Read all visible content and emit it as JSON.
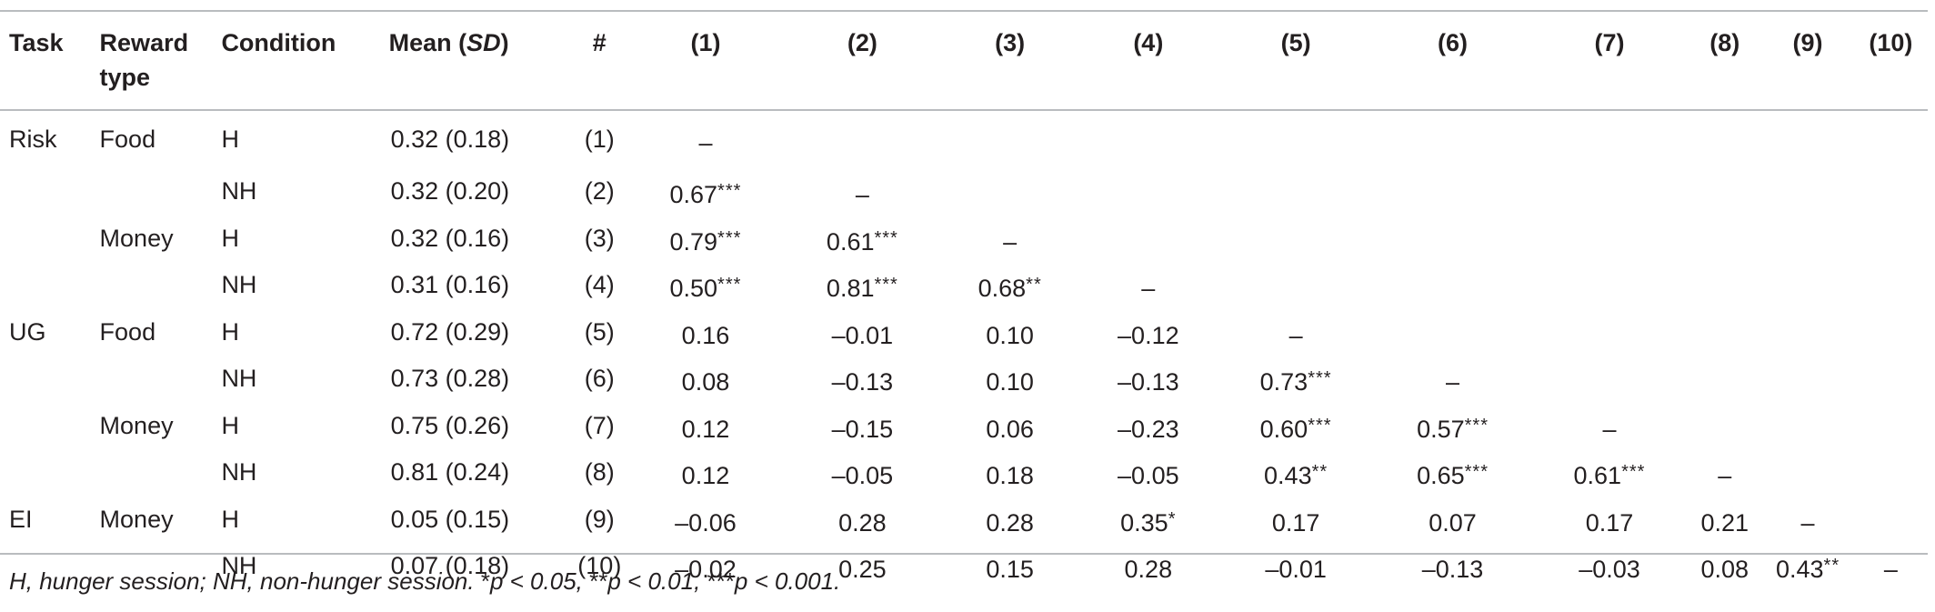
{
  "headers": {
    "task": "Task",
    "reward_type": [
      "Reward",
      "type"
    ],
    "condition": "Condition",
    "mean_prefix": "Mean (",
    "mean_sd": "SD",
    "mean_suffix": ")",
    "num": "#",
    "cols": [
      "(1)",
      "(2)",
      "(3)",
      "(4)",
      "(5)",
      "(6)",
      "(7)",
      "(8)",
      "(9)",
      "(10)"
    ]
  },
  "rows": [
    {
      "task": "Risk",
      "reward": "Food",
      "cond": "H",
      "mean": "0.32 (0.18)",
      "num": "(1)",
      "cells": [
        {
          "v": "–",
          "s": ""
        },
        {
          "v": "",
          "s": ""
        },
        {
          "v": "",
          "s": ""
        },
        {
          "v": "",
          "s": ""
        },
        {
          "v": "",
          "s": ""
        },
        {
          "v": "",
          "s": ""
        },
        {
          "v": "",
          "s": ""
        },
        {
          "v": "",
          "s": ""
        },
        {
          "v": "",
          "s": ""
        },
        {
          "v": "",
          "s": ""
        }
      ]
    },
    {
      "task": "",
      "reward": "",
      "cond": "NH",
      "mean": "0.32 (0.20)",
      "num": "(2)",
      "cells": [
        {
          "v": "0.67",
          "s": "***"
        },
        {
          "v": "–",
          "s": ""
        },
        {
          "v": "",
          "s": ""
        },
        {
          "v": "",
          "s": ""
        },
        {
          "v": "",
          "s": ""
        },
        {
          "v": "",
          "s": ""
        },
        {
          "v": "",
          "s": ""
        },
        {
          "v": "",
          "s": ""
        },
        {
          "v": "",
          "s": ""
        },
        {
          "v": "",
          "s": ""
        }
      ]
    },
    {
      "task": "",
      "reward": "Money",
      "cond": "H",
      "mean": "0.32 (0.16)",
      "num": "(3)",
      "cells": [
        {
          "v": "0.79",
          "s": "***"
        },
        {
          "v": "0.61",
          "s": "***"
        },
        {
          "v": "–",
          "s": ""
        },
        {
          "v": "",
          "s": ""
        },
        {
          "v": "",
          "s": ""
        },
        {
          "v": "",
          "s": ""
        },
        {
          "v": "",
          "s": ""
        },
        {
          "v": "",
          "s": ""
        },
        {
          "v": "",
          "s": ""
        },
        {
          "v": "",
          "s": ""
        }
      ]
    },
    {
      "task": "",
      "reward": "",
      "cond": "NH",
      "mean": "0.31 (0.16)",
      "num": "(4)",
      "cells": [
        {
          "v": "0.50",
          "s": "***"
        },
        {
          "v": "0.81",
          "s": "***"
        },
        {
          "v": "0.68",
          "s": "**"
        },
        {
          "v": "–",
          "s": ""
        },
        {
          "v": "",
          "s": ""
        },
        {
          "v": "",
          "s": ""
        },
        {
          "v": "",
          "s": ""
        },
        {
          "v": "",
          "s": ""
        },
        {
          "v": "",
          "s": ""
        },
        {
          "v": "",
          "s": ""
        }
      ]
    },
    {
      "task": "UG",
      "reward": "Food",
      "cond": "H",
      "mean": "0.72 (0.29)",
      "num": "(5)",
      "cells": [
        {
          "v": "0.16",
          "s": ""
        },
        {
          "v": "–0.01",
          "s": ""
        },
        {
          "v": "0.10",
          "s": ""
        },
        {
          "v": "–0.12",
          "s": ""
        },
        {
          "v": "–",
          "s": ""
        },
        {
          "v": "",
          "s": ""
        },
        {
          "v": "",
          "s": ""
        },
        {
          "v": "",
          "s": ""
        },
        {
          "v": "",
          "s": ""
        },
        {
          "v": "",
          "s": ""
        }
      ]
    },
    {
      "task": "",
      "reward": "",
      "cond": "NH",
      "mean": "0.73 (0.28)",
      "num": "(6)",
      "cells": [
        {
          "v": "0.08",
          "s": ""
        },
        {
          "v": "–0.13",
          "s": ""
        },
        {
          "v": "0.10",
          "s": ""
        },
        {
          "v": "–0.13",
          "s": ""
        },
        {
          "v": "0.73",
          "s": "***"
        },
        {
          "v": "–",
          "s": ""
        },
        {
          "v": "",
          "s": ""
        },
        {
          "v": "",
          "s": ""
        },
        {
          "v": "",
          "s": ""
        },
        {
          "v": "",
          "s": ""
        }
      ]
    },
    {
      "task": "",
      "reward": "Money",
      "cond": "H",
      "mean": "0.75 (0.26)",
      "num": "(7)",
      "cells": [
        {
          "v": "0.12",
          "s": ""
        },
        {
          "v": "–0.15",
          "s": ""
        },
        {
          "v": "0.06",
          "s": ""
        },
        {
          "v": "–0.23",
          "s": ""
        },
        {
          "v": "0.60",
          "s": "***"
        },
        {
          "v": "0.57",
          "s": "***"
        },
        {
          "v": "–",
          "s": ""
        },
        {
          "v": "",
          "s": ""
        },
        {
          "v": "",
          "s": ""
        },
        {
          "v": "",
          "s": ""
        }
      ]
    },
    {
      "task": "",
      "reward": "",
      "cond": "NH",
      "mean": "0.81 (0.24)",
      "num": "(8)",
      "cells": [
        {
          "v": "0.12",
          "s": ""
        },
        {
          "v": "–0.05",
          "s": ""
        },
        {
          "v": "0.18",
          "s": ""
        },
        {
          "v": "–0.05",
          "s": ""
        },
        {
          "v": "0.43",
          "s": "**"
        },
        {
          "v": "0.65",
          "s": "***"
        },
        {
          "v": "0.61",
          "s": "***"
        },
        {
          "v": "–",
          "s": ""
        },
        {
          "v": "",
          "s": ""
        },
        {
          "v": "",
          "s": ""
        }
      ]
    },
    {
      "task": "EI",
      "reward": "Money",
      "cond": "H",
      "mean": "0.05 (0.15)",
      "num": "(9)",
      "cells": [
        {
          "v": "–0.06",
          "s": ""
        },
        {
          "v": "0.28",
          "s": ""
        },
        {
          "v": "0.28",
          "s": ""
        },
        {
          "v": "0.35",
          "s": "*"
        },
        {
          "v": "0.17",
          "s": ""
        },
        {
          "v": "0.07",
          "s": ""
        },
        {
          "v": "0.17",
          "s": ""
        },
        {
          "v": "0.21",
          "s": ""
        },
        {
          "v": "–",
          "s": ""
        },
        {
          "v": "",
          "s": ""
        }
      ]
    },
    {
      "task": "",
      "reward": "",
      "cond": "NH",
      "mean": "0.07 (0.18)",
      "num": "(10)",
      "cells": [
        {
          "v": "–0.02",
          "s": ""
        },
        {
          "v": "0.25",
          "s": ""
        },
        {
          "v": "0.15",
          "s": ""
        },
        {
          "v": "0.28",
          "s": ""
        },
        {
          "v": "–0.01",
          "s": ""
        },
        {
          "v": "–0.13",
          "s": ""
        },
        {
          "v": "–0.03",
          "s": ""
        },
        {
          "v": "0.08",
          "s": ""
        },
        {
          "v": "0.43",
          "s": "**"
        },
        {
          "v": "–",
          "s": ""
        }
      ]
    }
  ],
  "footnote": {
    "text1": "H, hunger session; NH, non-hunger session. ",
    "s1": "*",
    "text2": "p < 0.05, ",
    "s2": "**",
    "text3": "p < 0.01, ",
    "s3": "***",
    "text4": "p < 0.001."
  }
}
